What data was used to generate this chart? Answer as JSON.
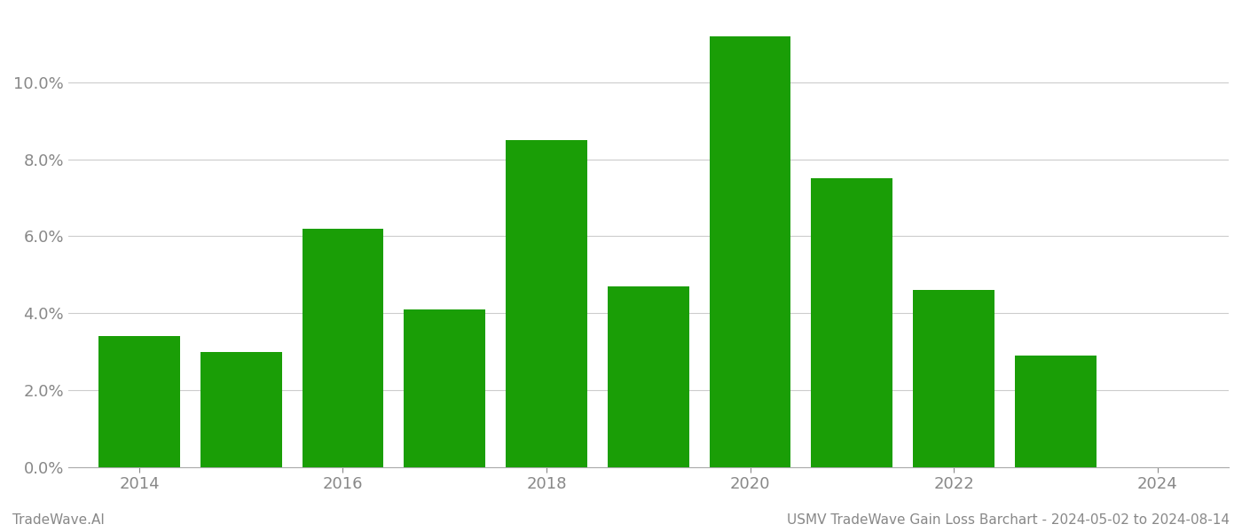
{
  "years": [
    2014,
    2015,
    2016,
    2017,
    2018,
    2019,
    2020,
    2021,
    2022,
    2023
  ],
  "values": [
    0.034,
    0.03,
    0.062,
    0.041,
    0.085,
    0.047,
    0.112,
    0.075,
    0.046,
    0.029
  ],
  "bar_color": "#1a9e06",
  "bar_width": 0.8,
  "xlim": [
    2013.3,
    2024.7
  ],
  "ylim": [
    0,
    0.118
  ],
  "yticks": [
    0.0,
    0.02,
    0.04,
    0.06,
    0.08,
    0.1
  ],
  "xticks": [
    2014,
    2016,
    2018,
    2020,
    2022,
    2024
  ],
  "xtick_labels": [
    "2014",
    "2016",
    "2018",
    "2020",
    "2022",
    "2024"
  ],
  "footer_left": "TradeWave.AI",
  "footer_right": "USMV TradeWave Gain Loss Barchart - 2024-05-02 to 2024-08-14",
  "grid_color": "#cccccc",
  "axis_color": "#aaaaaa",
  "tick_label_color": "#888888",
  "footer_font_size": 11,
  "tick_font_size": 13,
  "bg_color": "#ffffff"
}
